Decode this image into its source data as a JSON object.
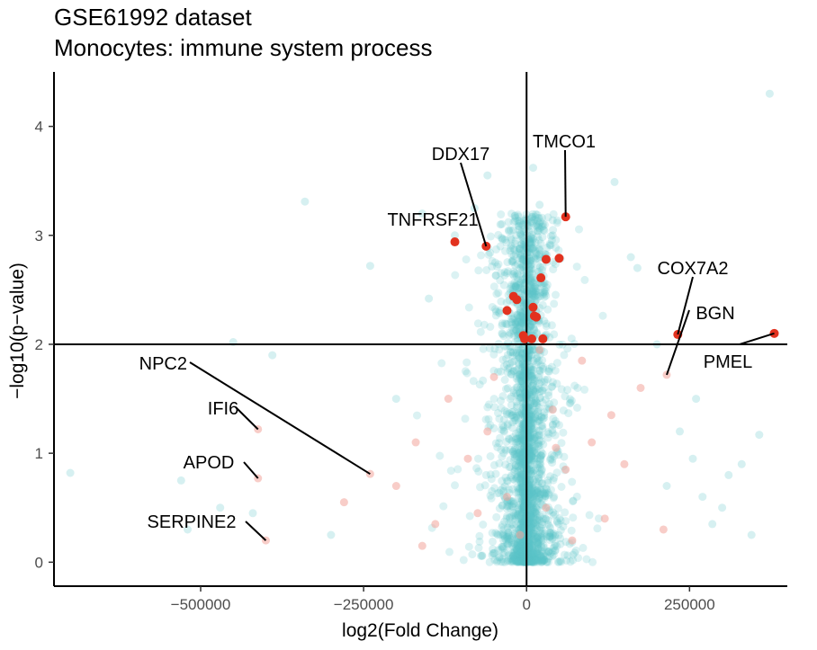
{
  "chart_data": {
    "type": "scatter",
    "title": "GSE61992 dataset",
    "subtitle": "Monocytes: immune system process",
    "xlabel": "log2(Fold Change)",
    "ylabel": "−log10(p−value)",
    "xlim": [
      -725000,
      400000
    ],
    "ylim": [
      -0.22,
      4.5
    ],
    "x_ticks": [
      -500000,
      -250000,
      0,
      250000
    ],
    "x_tick_labels": [
      "−500000",
      "−250000",
      "0",
      "250000"
    ],
    "y_ticks": [
      0,
      1,
      2,
      3,
      4
    ],
    "y_tick_labels": [
      "0",
      "1",
      "2",
      "3",
      "4"
    ],
    "grid": false,
    "threshold_lines": {
      "x": 0,
      "y": 2
    },
    "colors": {
      "background_points": "#5bc3c7",
      "process_points_faded": "#f2a49a",
      "significant_points": "#e2321f"
    },
    "labeled_genes": [
      {
        "name": "TMCO1",
        "x": 60000,
        "y": 3.17
      },
      {
        "name": "DDX17",
        "x": -62000,
        "y": 2.9
      },
      {
        "name": "TNFRSF21",
        "x": -110000,
        "y": 2.94
      },
      {
        "name": "COX7A2",
        "x": 232000,
        "y": 2.09
      },
      {
        "name": "BGN",
        "x": 215000,
        "y": 1.72
      },
      {
        "name": "PMEL",
        "x": 380000,
        "y": 2.1
      },
      {
        "name": "NPC2",
        "x": -240000,
        "y": 0.81
      },
      {
        "name": "IFI6",
        "x": -412000,
        "y": 1.22
      },
      {
        "name": "APOD",
        "x": -412000,
        "y": 0.77
      },
      {
        "name": "SERPINE2",
        "x": -400000,
        "y": 0.2
      }
    ],
    "significant_points": [
      {
        "x": -110000,
        "y": 2.94
      },
      {
        "x": -62000,
        "y": 2.9
      },
      {
        "x": 60000,
        "y": 3.17
      },
      {
        "x": 30000,
        "y": 2.78
      },
      {
        "x": 50000,
        "y": 2.79
      },
      {
        "x": 22000,
        "y": 2.61
      },
      {
        "x": -20000,
        "y": 2.44
      },
      {
        "x": -15000,
        "y": 2.41
      },
      {
        "x": -30000,
        "y": 2.31
      },
      {
        "x": 10000,
        "y": 2.34
      },
      {
        "x": 12000,
        "y": 2.26
      },
      {
        "x": 15000,
        "y": 2.25
      },
      {
        "x": -5000,
        "y": 2.08
      },
      {
        "x": -3000,
        "y": 2.05
      },
      {
        "x": 8000,
        "y": 2.05
      },
      {
        "x": 25000,
        "y": 2.05
      },
      {
        "x": 232000,
        "y": 2.09
      },
      {
        "x": 380000,
        "y": 2.1
      }
    ],
    "process_points": [
      {
        "x": -240000,
        "y": 0.81
      },
      {
        "x": -412000,
        "y": 1.22
      },
      {
        "x": -412000,
        "y": 0.77
      },
      {
        "x": -400000,
        "y": 0.2
      },
      {
        "x": 215000,
        "y": 1.72
      },
      {
        "x": 175000,
        "y": 1.6
      },
      {
        "x": 85000,
        "y": 1.85
      },
      {
        "x": -120000,
        "y": 1.5
      },
      {
        "x": -60000,
        "y": 1.2
      },
      {
        "x": 40000,
        "y": 1.4
      },
      {
        "x": -90000,
        "y": 0.95
      },
      {
        "x": -30000,
        "y": 0.6
      },
      {
        "x": 30000,
        "y": 0.5
      },
      {
        "x": 60000,
        "y": 0.85
      },
      {
        "x": -140000,
        "y": 0.35
      },
      {
        "x": 120000,
        "y": 0.4
      },
      {
        "x": -200000,
        "y": 0.7
      },
      {
        "x": 100000,
        "y": 1.1
      },
      {
        "x": -50000,
        "y": 1.7
      },
      {
        "x": 20000,
        "y": 1.95
      },
      {
        "x": -170000,
        "y": 1.1
      },
      {
        "x": 150000,
        "y": 0.9
      },
      {
        "x": -280000,
        "y": 0.55
      },
      {
        "x": 210000,
        "y": 0.3
      },
      {
        "x": -10000,
        "y": 0.25
      },
      {
        "x": 70000,
        "y": 0.2
      },
      {
        "x": -160000,
        "y": 0.15
      },
      {
        "x": 45000,
        "y": 1.05
      },
      {
        "x": -75000,
        "y": 0.45
      },
      {
        "x": 130000,
        "y": 1.35
      }
    ]
  }
}
